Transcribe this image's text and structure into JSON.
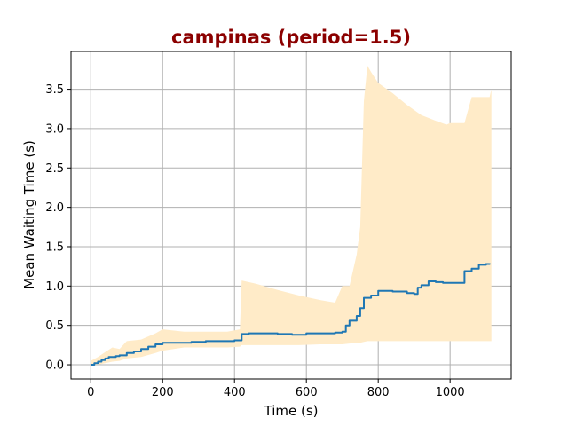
{
  "chart_data": {
    "type": "line",
    "title": "campinas (period=1.5)",
    "title_color": "#8b0000",
    "xlabel": "Time (s)",
    "ylabel": "Mean Waiting Time (s)",
    "xlim": [
      -55,
      1170
    ],
    "ylim": [
      -0.18,
      3.98
    ],
    "xticks": [
      0,
      200,
      400,
      600,
      800,
      1000
    ],
    "xtick_labels": [
      "0",
      "200",
      "400",
      "600",
      "800",
      "1000"
    ],
    "yticks": [
      0.0,
      0.5,
      1.0,
      1.5,
      2.0,
      2.5,
      3.0,
      3.5
    ],
    "ytick_labels": [
      "0.0",
      "0.5",
      "1.0",
      "1.5",
      "2.0",
      "2.5",
      "3.0",
      "3.5"
    ],
    "grid": true,
    "line_color": "#1f77b4",
    "band_color": "#ffebc8",
    "series": [
      {
        "x": [
          0,
          10,
          20,
          30,
          40,
          50,
          60,
          70,
          80,
          100,
          120,
          140,
          160,
          180,
          200,
          240,
          280,
          320,
          360,
          400,
          420,
          440,
          480,
          520,
          560,
          580,
          600,
          640,
          680,
          700,
          710,
          720,
          740,
          750,
          760,
          780,
          800,
          840,
          880,
          900,
          910,
          920,
          940,
          960,
          980,
          1000,
          1020,
          1040,
          1060,
          1080,
          1100,
          1110
        ],
        "values": [
          0.0,
          0.02,
          0.04,
          0.06,
          0.08,
          0.1,
          0.1,
          0.11,
          0.12,
          0.15,
          0.17,
          0.2,
          0.23,
          0.26,
          0.28,
          0.28,
          0.29,
          0.3,
          0.3,
          0.31,
          0.39,
          0.4,
          0.4,
          0.39,
          0.38,
          0.38,
          0.4,
          0.4,
          0.41,
          0.42,
          0.5,
          0.56,
          0.62,
          0.72,
          0.85,
          0.88,
          0.94,
          0.93,
          0.91,
          0.9,
          0.98,
          1.01,
          1.06,
          1.05,
          1.04,
          1.04,
          1.04,
          1.19,
          1.22,
          1.27,
          1.28,
          1.29
        ]
      }
    ],
    "band": {
      "x": [
        0,
        20,
        40,
        60,
        80,
        100,
        140,
        180,
        200,
        260,
        320,
        380,
        415,
        420,
        460,
        520,
        580,
        640,
        680,
        700,
        720,
        740,
        750,
        760,
        770,
        780,
        800,
        840,
        880,
        920,
        960,
        990,
        1000,
        1030,
        1040,
        1060,
        1080,
        1110,
        1115
      ],
      "upper": [
        0.05,
        0.1,
        0.16,
        0.22,
        0.2,
        0.3,
        0.32,
        0.4,
        0.45,
        0.42,
        0.42,
        0.42,
        0.45,
        1.07,
        1.03,
        0.95,
        0.88,
        0.82,
        0.79,
        1.0,
        1.0,
        1.4,
        1.75,
        3.35,
        3.8,
        3.72,
        3.58,
        3.45,
        3.3,
        3.17,
        3.1,
        3.05,
        3.07,
        3.07,
        3.07,
        3.4,
        3.4,
        3.4,
        3.5
      ],
      "lower": [
        0.0,
        0.0,
        0.02,
        0.04,
        0.05,
        0.08,
        0.1,
        0.15,
        0.18,
        0.22,
        0.22,
        0.22,
        0.23,
        0.25,
        0.25,
        0.25,
        0.25,
        0.26,
        0.26,
        0.26,
        0.27,
        0.28,
        0.28,
        0.29,
        0.3,
        0.3,
        0.3,
        0.3,
        0.3,
        0.3,
        0.3,
        0.3,
        0.3,
        0.3,
        0.3,
        0.3,
        0.3,
        0.3,
        0.3
      ]
    }
  }
}
